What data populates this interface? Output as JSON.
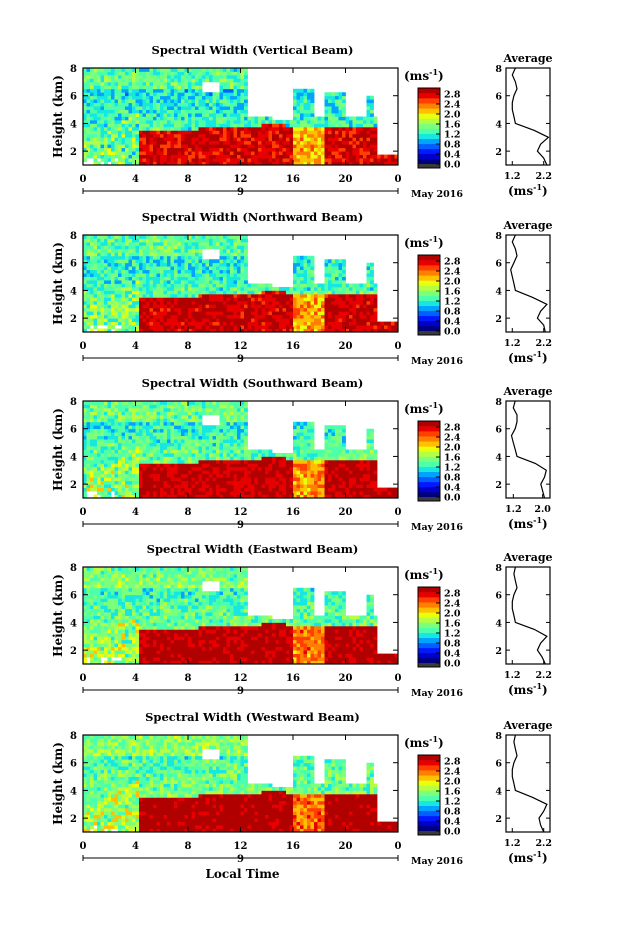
{
  "figure": {
    "xlabel": "Local Time",
    "date_label": "May 2016",
    "day_label": "9",
    "units": "(ms",
    "units_exp": "-1",
    "average_title": "Average",
    "average_units": "(ms",
    "average_units_exp": "-1"
  },
  "colorbar": {
    "ticks": [
      "2.8",
      "2.4",
      "2.0",
      "1.6",
      "1.2",
      "0.8",
      "0.4",
      "0.0"
    ],
    "colors": [
      "#00007f",
      "#0000c8",
      "#0019ff",
      "#0060ff",
      "#00a4ff",
      "#16e8e1",
      "#4cffab",
      "#7cff7a",
      "#b4ff43",
      "#eaff0c",
      "#ffc000",
      "#ff8000",
      "#ff4000",
      "#e80000",
      "#b00000"
    ]
  },
  "chart_data": [
    {
      "type": "heatmap",
      "title": "Spectral Width (Vertical Beam)",
      "xlabel": "Local Time",
      "ylabel": "Height (km)",
      "x_ticks": [
        "0",
        "4",
        "8",
        "12",
        "16",
        "20",
        "0"
      ],
      "y_ticks": [
        "2",
        "4",
        "6",
        "8"
      ],
      "xlim": [
        0,
        24
      ],
      "ylim": [
        1,
        8
      ],
      "colorbar_ticks": [
        "2.8",
        "2.4",
        "2.0",
        "1.6",
        "1.2",
        "0.8",
        "0.4",
        "0.0"
      ],
      "inset": {
        "title": "Average",
        "x_ticks": [
          "1.2",
          "2.2"
        ],
        "xlim": [
          1.0,
          2.4
        ],
        "y_ticks": [
          "2",
          "4",
          "6",
          "8"
        ],
        "ylim": [
          1,
          8
        ],
        "heights": [
          1.0,
          1.5,
          2.0,
          2.5,
          3.0,
          3.5,
          4.0,
          4.5,
          5.0,
          5.5,
          6.0,
          6.5,
          7.0,
          7.5,
          8.0
        ],
        "values": [
          2.3,
          2.2,
          2.0,
          2.1,
          2.35,
          1.9,
          1.3,
          1.25,
          1.2,
          1.2,
          1.25,
          1.35,
          1.3,
          1.2,
          1.3
        ]
      }
    },
    {
      "type": "heatmap",
      "title": "Spectral Width (Northward Beam)",
      "xlabel": "Local Time",
      "ylabel": "Height (km)",
      "x_ticks": [
        "0",
        "4",
        "8",
        "12",
        "16",
        "20",
        "0"
      ],
      "y_ticks": [
        "2",
        "4",
        "6",
        "8"
      ],
      "xlim": [
        0,
        24
      ],
      "ylim": [
        1,
        8
      ],
      "colorbar_ticks": [
        "2.8",
        "2.4",
        "2.0",
        "1.6",
        "1.2",
        "0.8",
        "0.4",
        "0.0"
      ],
      "inset": {
        "title": "Average",
        "x_ticks": [
          "1.2",
          "2.2"
        ],
        "xlim": [
          1.0,
          2.4
        ],
        "y_ticks": [
          "2",
          "4",
          "6",
          "8"
        ],
        "ylim": [
          1,
          8
        ],
        "heights": [
          1.0,
          1.5,
          2.0,
          2.5,
          3.0,
          3.5,
          4.0,
          4.5,
          5.0,
          5.5,
          6.0,
          6.5,
          7.0,
          7.5,
          8.0
        ],
        "values": [
          2.25,
          2.2,
          2.0,
          2.1,
          2.3,
          1.85,
          1.3,
          1.25,
          1.2,
          1.15,
          1.25,
          1.35,
          1.3,
          1.2,
          1.3
        ]
      }
    },
    {
      "type": "heatmap",
      "title": "Spectral Width (Southward Beam)",
      "xlabel": "Local Time",
      "ylabel": "Height (km)",
      "x_ticks": [
        "0",
        "4",
        "8",
        "12",
        "16",
        "20",
        "0"
      ],
      "y_ticks": [
        "2",
        "4",
        "6",
        "8"
      ],
      "xlim": [
        0,
        24
      ],
      "ylim": [
        1,
        8
      ],
      "colorbar_ticks": [
        "2.8",
        "2.4",
        "2.0",
        "1.6",
        "1.2",
        "0.8",
        "0.4",
        "0.0"
      ],
      "inset": {
        "title": "Average",
        "x_ticks": [
          "1.2",
          "2.0"
        ],
        "xlim": [
          1.0,
          2.2
        ],
        "y_ticks": [
          "2",
          "4",
          "6",
          "8"
        ],
        "ylim": [
          1,
          8
        ],
        "heights": [
          1.0,
          1.5,
          2.0,
          2.5,
          3.0,
          3.5,
          4.0,
          4.5,
          5.0,
          5.5,
          6.0,
          6.5,
          7.0,
          7.5,
          8.0
        ],
        "values": [
          2.05,
          2.0,
          1.95,
          2.05,
          2.1,
          1.8,
          1.3,
          1.25,
          1.2,
          1.15,
          1.25,
          1.3,
          1.3,
          1.2,
          1.25
        ]
      }
    },
    {
      "type": "heatmap",
      "title": "Spectral Width (Eastward Beam)",
      "xlabel": "Local Time",
      "ylabel": "Height (km)",
      "x_ticks": [
        "0",
        "4",
        "8",
        "12",
        "16",
        "20",
        "0"
      ],
      "y_ticks": [
        "2",
        "4",
        "6",
        "8"
      ],
      "xlim": [
        0,
        24
      ],
      "ylim": [
        1,
        8
      ],
      "colorbar_ticks": [
        "2.8",
        "2.4",
        "2.0",
        "1.6",
        "1.2",
        "0.8",
        "0.4",
        "0.0"
      ],
      "inset": {
        "title": "Average",
        "x_ticks": [
          "1.2",
          "2.2"
        ],
        "xlim": [
          1.0,
          2.4
        ],
        "y_ticks": [
          "2",
          "4",
          "6",
          "8"
        ],
        "ylim": [
          1,
          8
        ],
        "heights": [
          1.0,
          1.5,
          2.0,
          2.5,
          3.0,
          3.5,
          4.0,
          4.5,
          5.0,
          5.5,
          6.0,
          6.5,
          7.0,
          7.5,
          8.0
        ],
        "values": [
          2.25,
          2.15,
          2.0,
          2.1,
          2.3,
          1.9,
          1.3,
          1.25,
          1.2,
          1.2,
          1.25,
          1.35,
          1.3,
          1.25,
          1.3
        ]
      }
    },
    {
      "type": "heatmap",
      "title": "Spectral Width (Westward Beam)",
      "xlabel": "Local Time",
      "ylabel": "Height (km)",
      "x_ticks": [
        "0",
        "4",
        "8",
        "12",
        "16",
        "20",
        "0"
      ],
      "y_ticks": [
        "2",
        "4",
        "6",
        "8"
      ],
      "xlim": [
        0,
        24
      ],
      "ylim": [
        1,
        8
      ],
      "colorbar_ticks": [
        "2.8",
        "2.4",
        "2.0",
        "1.6",
        "1.2",
        "0.8",
        "0.4",
        "0.0"
      ],
      "inset": {
        "title": "Average",
        "x_ticks": [
          "1.2",
          "2.2"
        ],
        "xlim": [
          1.0,
          2.4
        ],
        "y_ticks": [
          "2",
          "4",
          "6",
          "8"
        ],
        "ylim": [
          1,
          8
        ],
        "heights": [
          1.0,
          1.5,
          2.0,
          2.5,
          3.0,
          3.5,
          4.0,
          4.5,
          5.0,
          5.5,
          6.0,
          6.5,
          7.0,
          7.5,
          8.0
        ],
        "values": [
          2.2,
          2.1,
          2.05,
          2.2,
          2.3,
          1.85,
          1.3,
          1.25,
          1.2,
          1.2,
          1.25,
          1.35,
          1.3,
          1.25,
          1.3
        ]
      }
    }
  ]
}
